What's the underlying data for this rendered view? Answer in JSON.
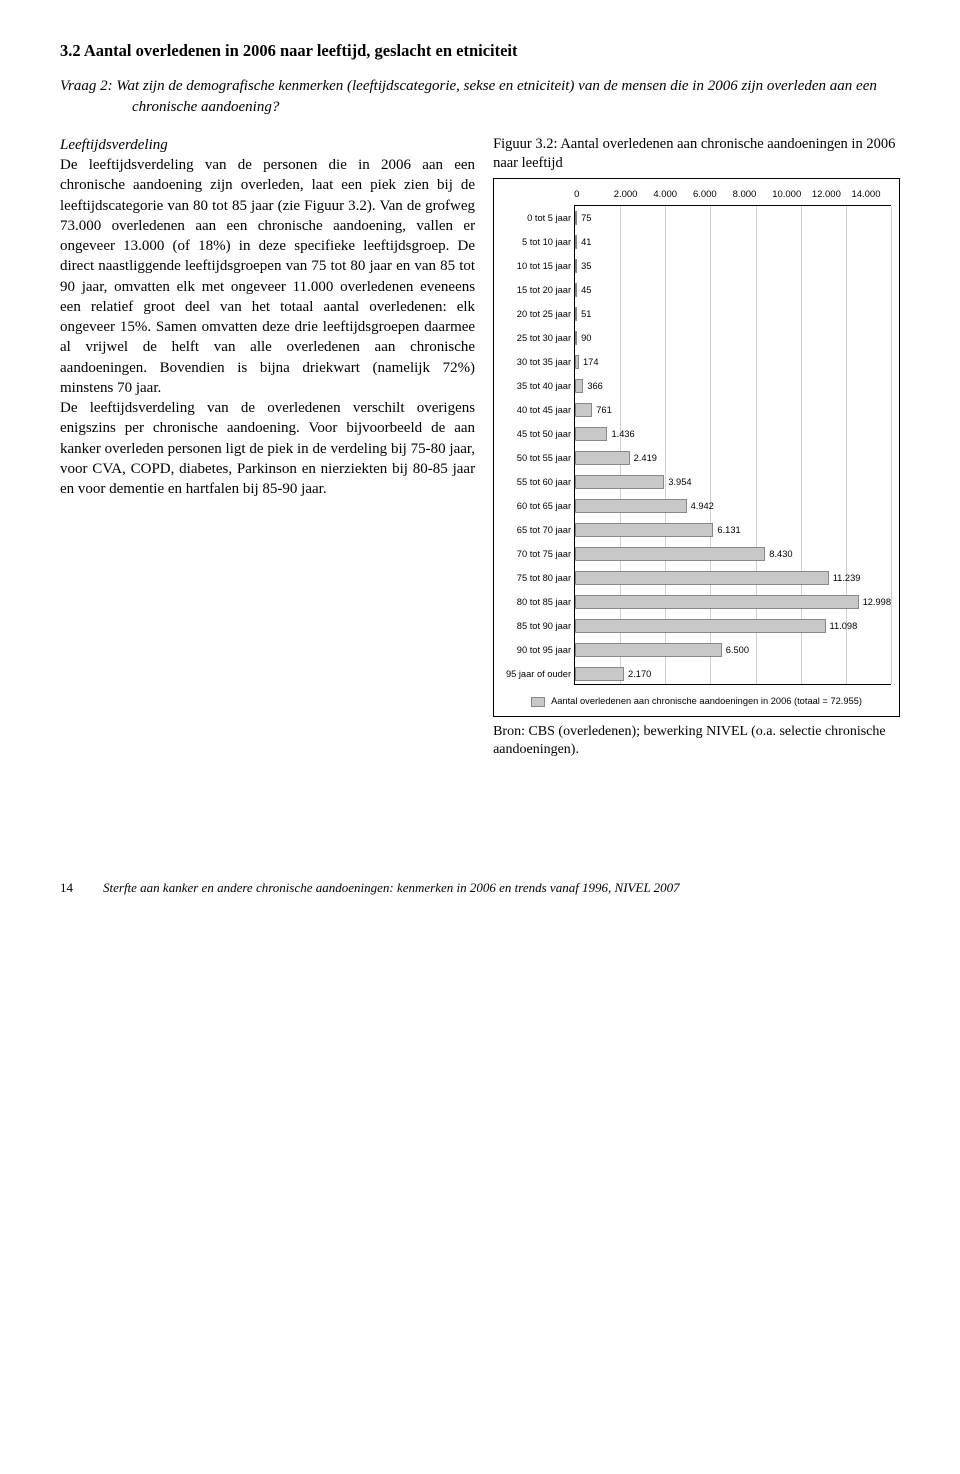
{
  "heading": "3.2  Aantal overledenen in 2006 naar leeftijd, geslacht en etniciteit",
  "question": "Vraag 2:  Wat zijn de demografische kenmerken (leeftijdscategorie, sekse en etniciteit) van de mensen die in 2006 zijn overleden aan een chronische aandoening?",
  "body": {
    "subhead": "Leeftijdsverdeling",
    "p1": "De leeftijdsverdeling van de personen die in 2006 aan een chronische aandoening zijn overleden, laat een piek zien bij de leeftijdscategorie van 80 tot 85 jaar (zie Figuur 3.2). Van de grofweg 73.000 overledenen aan een chronische aandoening, vallen er ongeveer 13.000 (of 18%) in deze specifieke leeftijdsgroep. De direct naastliggende leeftijdsgroepen van 75 tot 80 jaar en van 85 tot 90 jaar, omvatten elk met ongeveer 11.000 overledenen eveneens een relatief groot deel van het totaal aantal overledenen: elk ongeveer 15%. Samen omvatten deze drie leeftijdsgroepen daarmee al vrijwel de helft van alle overledenen aan chronische aandoeningen. Bovendien is bijna driekwart (namelijk 72%) minstens 70 jaar.",
    "p2": "De leeftijdsverdeling van de overledenen verschilt overigens enigszins per chronische aandoening. Voor bijvoorbeeld de aan kanker overleden personen ligt de piek in de verdeling bij 75-80 jaar, voor CVA, COPD, diabetes, Parkinson en nierziekten bij 80-85 jaar en voor dementie en hartfalen bij 85-90 jaar."
  },
  "figure": {
    "caption": "Figuur 3.2: Aantal overledenen aan chronische aandoeningen in 2006 naar leeftijd",
    "source": "Bron: CBS (overledenen); bewerking NIVEL (o.a. selectie chronische aandoeningen).",
    "legend": "Aantal overledenen aan chronische aandoeningen in 2006 (totaal = 72.955)",
    "x_ticks": [
      "0",
      "2.000",
      "4.000",
      "6.000",
      "8.000",
      "10.000",
      "12.000",
      "14.000"
    ],
    "x_max": 14000,
    "bar_color": "#c8c8c8",
    "bar_border": "#888888",
    "grid_color": "#cfcfcf",
    "categories": [
      {
        "label": "0 tot 5 jaar",
        "value": 75,
        "text": "75"
      },
      {
        "label": "5 tot 10 jaar",
        "value": 41,
        "text": "41"
      },
      {
        "label": "10 tot 15 jaar",
        "value": 35,
        "text": "35"
      },
      {
        "label": "15 tot 20 jaar",
        "value": 45,
        "text": "45"
      },
      {
        "label": "20 tot 25 jaar",
        "value": 51,
        "text": "51"
      },
      {
        "label": "25 tot 30 jaar",
        "value": 90,
        "text": "90"
      },
      {
        "label": "30 tot 35 jaar",
        "value": 174,
        "text": "174"
      },
      {
        "label": "35 tot 40 jaar",
        "value": 366,
        "text": "366"
      },
      {
        "label": "40 tot 45 jaar",
        "value": 761,
        "text": "761"
      },
      {
        "label": "45 tot 50 jaar",
        "value": 1436,
        "text": "1.436"
      },
      {
        "label": "50 tot 55 jaar",
        "value": 2419,
        "text": "2.419"
      },
      {
        "label": "55 tot 60 jaar",
        "value": 3954,
        "text": "3.954"
      },
      {
        "label": "60 tot 65 jaar",
        "value": 4942,
        "text": "4.942"
      },
      {
        "label": "65 tot 70 jaar",
        "value": 6131,
        "text": "6.131"
      },
      {
        "label": "70 tot 75 jaar",
        "value": 8430,
        "text": "8.430"
      },
      {
        "label": "75 tot 80 jaar",
        "value": 11239,
        "text": "11.239"
      },
      {
        "label": "80 tot 85 jaar",
        "value": 12998,
        "text": "12.998"
      },
      {
        "label": "85 tot 90 jaar",
        "value": 11098,
        "text": "11.098"
      },
      {
        "label": "90 tot 95 jaar",
        "value": 6500,
        "text": "6.500"
      },
      {
        "label": "95 jaar of ouder",
        "value": 2170,
        "text": "2.170"
      }
    ]
  },
  "footer": {
    "page": "14",
    "text": "Sterfte aan kanker en andere chronische aandoeningen: kenmerken in 2006 en trends vanaf 1996, NIVEL 2007"
  }
}
